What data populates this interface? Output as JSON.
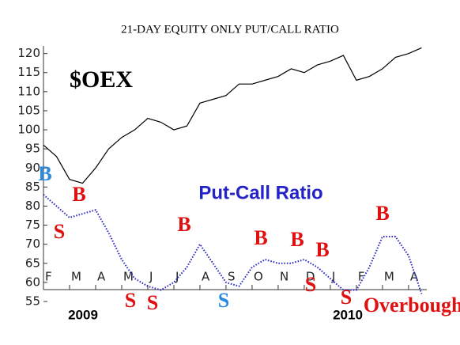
{
  "chart_data": {
    "type": "line",
    "title": "21-DAY EQUITY ONLY PUT/CALL RATIO",
    "x": [
      0,
      0.5,
      1,
      1.5,
      2,
      2.5,
      3,
      3.5,
      4,
      4.5,
      5,
      5.5,
      6,
      6.5,
      7,
      7.5,
      8,
      8.5,
      9,
      9.5,
      10,
      10.5,
      11,
      11.5,
      12,
      12.5,
      13,
      13.5,
      14,
      14.5
    ],
    "xlim": [
      0,
      14.7
    ],
    "xticks": [
      {
        "value": 0,
        "label": "F"
      },
      {
        "value": 1,
        "label": "M"
      },
      {
        "value": 2,
        "label": "A"
      },
      {
        "value": 3,
        "label": "M"
      },
      {
        "value": 4,
        "label": "J"
      },
      {
        "value": 5,
        "label": "J"
      },
      {
        "value": 6,
        "label": "A"
      },
      {
        "value": 7,
        "label": "S"
      },
      {
        "value": 8,
        "label": "O"
      },
      {
        "value": 9,
        "label": "N"
      },
      {
        "value": 10,
        "label": "D"
      },
      {
        "value": 11,
        "label": "J"
      },
      {
        "value": 12,
        "label": "F"
      },
      {
        "value": 13,
        "label": "M"
      },
      {
        "value": 14,
        "label": "A"
      }
    ],
    "years": [
      "2009",
      "2010"
    ],
    "ylim": [
      55,
      122
    ],
    "yticks": [
      55,
      60,
      65,
      70,
      75,
      80,
      85,
      90,
      95,
      100,
      105,
      110,
      115,
      120
    ],
    "series": [
      {
        "name": "$OEX",
        "color": "#000000",
        "style": "solid",
        "values": [
          96,
          93,
          87,
          86,
          90,
          95,
          98,
          100,
          103,
          102,
          100,
          101,
          107,
          108,
          109,
          112,
          112,
          113,
          114,
          116,
          115,
          117,
          118,
          119.5,
          113,
          114,
          116,
          119,
          120,
          121.5
        ]
      },
      {
        "name": "Put-Call Ratio",
        "color": "#2323c8",
        "style": "dotted",
        "values": [
          83,
          80,
          77,
          78,
          79,
          73,
          66,
          61,
          59,
          58,
          60,
          64,
          70,
          65,
          60,
          59,
          64,
          66,
          65,
          65,
          66,
          64,
          61,
          58,
          58,
          64,
          72,
          72,
          67,
          57
        ]
      }
    ],
    "annotations": [
      {
        "text": "B",
        "color": "#2a8ae0"
      },
      {
        "text": "S",
        "color": "#e01010"
      },
      {
        "text": "B",
        "color": "#e01010"
      },
      {
        "text": "S",
        "color": "#e01010"
      },
      {
        "text": "S",
        "color": "#e01010"
      },
      {
        "text": "B",
        "color": "#e01010"
      },
      {
        "text": "S",
        "color": "#2a8ae0"
      },
      {
        "text": "B",
        "color": "#e01010"
      },
      {
        "text": "B",
        "color": "#e01010"
      },
      {
        "text": "B",
        "color": "#e01010"
      },
      {
        "text": "S",
        "color": "#e01010"
      },
      {
        "text": "S",
        "color": "#e01010"
      },
      {
        "text": "B",
        "color": "#e01010"
      },
      {
        "text": "Overbought",
        "color": "#e01010"
      }
    ]
  }
}
